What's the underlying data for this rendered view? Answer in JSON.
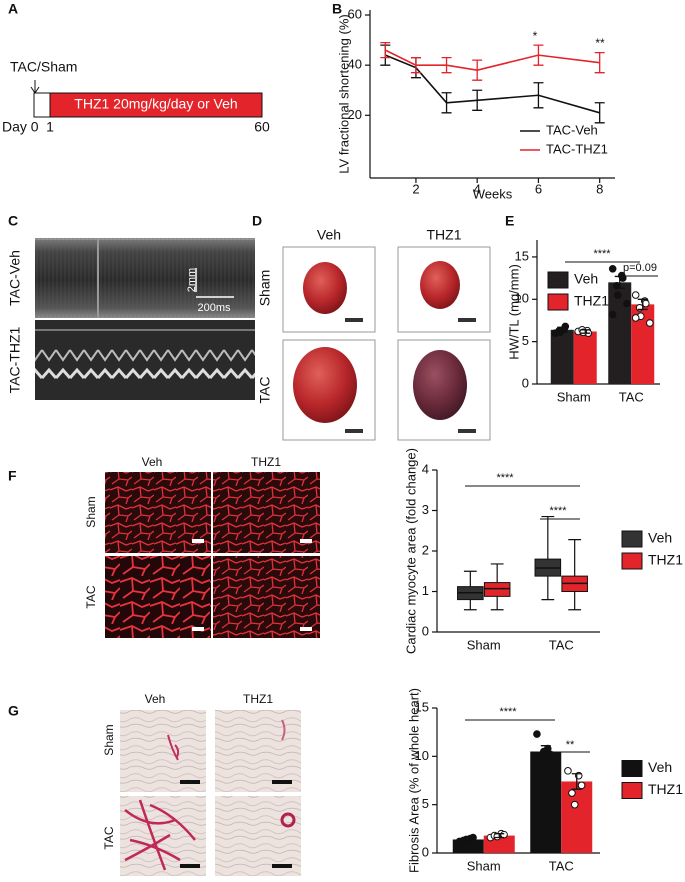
{
  "panel_labels": [
    "A",
    "B",
    "C",
    "D",
    "E",
    "F",
    "G"
  ],
  "timeline": {
    "start_label": "TAC/Sham",
    "bar_label": "THZ1 20mg/kg/day or Veh",
    "ticks": [
      "Day 0",
      "1",
      "60"
    ]
  },
  "echo": {
    "rows": [
      "TAC-Veh",
      "TAC-THZ1"
    ],
    "scale_y": "2mm",
    "scale_x": "200ms"
  },
  "hearts": {
    "columns": [
      "Veh",
      "THZ1"
    ],
    "rows": [
      "Sham",
      "TAC"
    ]
  },
  "histology_f": {
    "columns": [
      "Veh",
      "THZ1"
    ],
    "rows": [
      "Sham",
      "TAC"
    ]
  },
  "histology_g": {
    "columns": [
      "Veh",
      "THZ1"
    ],
    "rows": [
      "Sham",
      "TAC"
    ]
  },
  "chart_data": [
    {
      "type": "line",
      "ylabel": "LV fractional shortening (%)",
      "xlabel": "Weeks",
      "x": [
        1,
        2,
        3,
        4,
        6,
        8
      ],
      "xlim": [
        0.5,
        8.5
      ],
      "xticks": [
        2,
        4,
        6,
        8
      ],
      "ylim": [
        -5,
        62
      ],
      "yticks": [
        20,
        40,
        60
      ],
      "legend": "lower right",
      "series": [
        {
          "name": "TAC-Veh",
          "color": "#111111",
          "values": [
            44,
            39,
            25,
            26,
            28,
            21
          ],
          "errors": [
            4,
            4,
            4,
            4,
            5,
            4
          ]
        },
        {
          "name": "TAC-THZ1",
          "color": "#e3242b",
          "values": [
            46,
            40,
            40,
            38,
            44,
            41
          ],
          "errors": [
            3,
            3,
            3,
            4,
            4,
            4
          ]
        }
      ],
      "annotations": [
        "*",
        "**"
      ]
    },
    {
      "type": "bar",
      "ylabel": "HW/TL (mg/mm)",
      "categories": [
        "Sham",
        "TAC"
      ],
      "ylim": [
        0,
        17
      ],
      "yticks": [
        0,
        5,
        10,
        15
      ],
      "legend": "upper left",
      "series": [
        {
          "name": "Veh",
          "color": "#231f20",
          "values": [
            6.4,
            12.0
          ],
          "errors": [
            0.3,
            0.7
          ],
          "points": [
            [
              6.0,
              6.5,
              6.8,
              6.3,
              6.1
            ],
            [
              13.6,
              12.8,
              12.5,
              11.6,
              10.5,
              9.5,
              8.2
            ]
          ]
        },
        {
          "name": "THZ1",
          "color": "#e3242b",
          "values": [
            6.2,
            9.4
          ],
          "errors": [
            0.2,
            0.6
          ],
          "points": [
            [
              6.2,
              6.3,
              6.0,
              6.4,
              6.1
            ],
            [
              10.5,
              9.8,
              9.5,
              9.0,
              8.0,
              7.2,
              7.8
            ]
          ]
        }
      ],
      "annotations": [
        "****",
        "p=0.09"
      ]
    },
    {
      "type": "box",
      "ylabel": "Cardiac myocyte area (fold change)",
      "categories": [
        "Sham",
        "TAC"
      ],
      "ylim": [
        0,
        4
      ],
      "yticks": [
        0,
        1,
        2,
        3,
        4
      ],
      "legend": "right",
      "series": [
        {
          "name": "Veh",
          "color": "#333333",
          "boxes": [
            [
              0.55,
              0.8,
              0.97,
              1.12,
              1.5
            ],
            [
              0.8,
              1.38,
              1.58,
              1.8,
              2.85
            ]
          ]
        },
        {
          "name": "THZ1",
          "color": "#e3242b",
          "boxes": [
            [
              0.55,
              0.88,
              1.07,
              1.22,
              1.68
            ],
            [
              0.55,
              1.0,
              1.2,
              1.38,
              2.28
            ]
          ]
        }
      ],
      "annotations": [
        "****",
        "****"
      ]
    },
    {
      "type": "bar",
      "ylabel": "Fibrosis Area (% of whole heart)",
      "categories": [
        "Sham",
        "TAC"
      ],
      "ylim": [
        0,
        15
      ],
      "yticks": [
        0,
        5,
        10,
        15
      ],
      "legend": "right",
      "series": [
        {
          "name": "Veh",
          "color": "#111111",
          "values": [
            1.4,
            10.5
          ],
          "errors": [
            0.15,
            0.6
          ],
          "points": [
            [
              1.2,
              1.5,
              1.6,
              1.3,
              1.4
            ],
            [
              12.3,
              10.8,
              10.2,
              9.6,
              10.5
            ]
          ]
        },
        {
          "name": "THZ1",
          "color": "#e3242b",
          "values": [
            1.8,
            7.4
          ],
          "errors": [
            0.2,
            0.8
          ],
          "points": [
            [
              1.6,
              2.0,
              1.9,
              1.8,
              1.7
            ],
            [
              8.5,
              8.0,
              7.0,
              6.2,
              5.0
            ]
          ]
        }
      ],
      "annotations": [
        "****",
        "**"
      ]
    }
  ]
}
